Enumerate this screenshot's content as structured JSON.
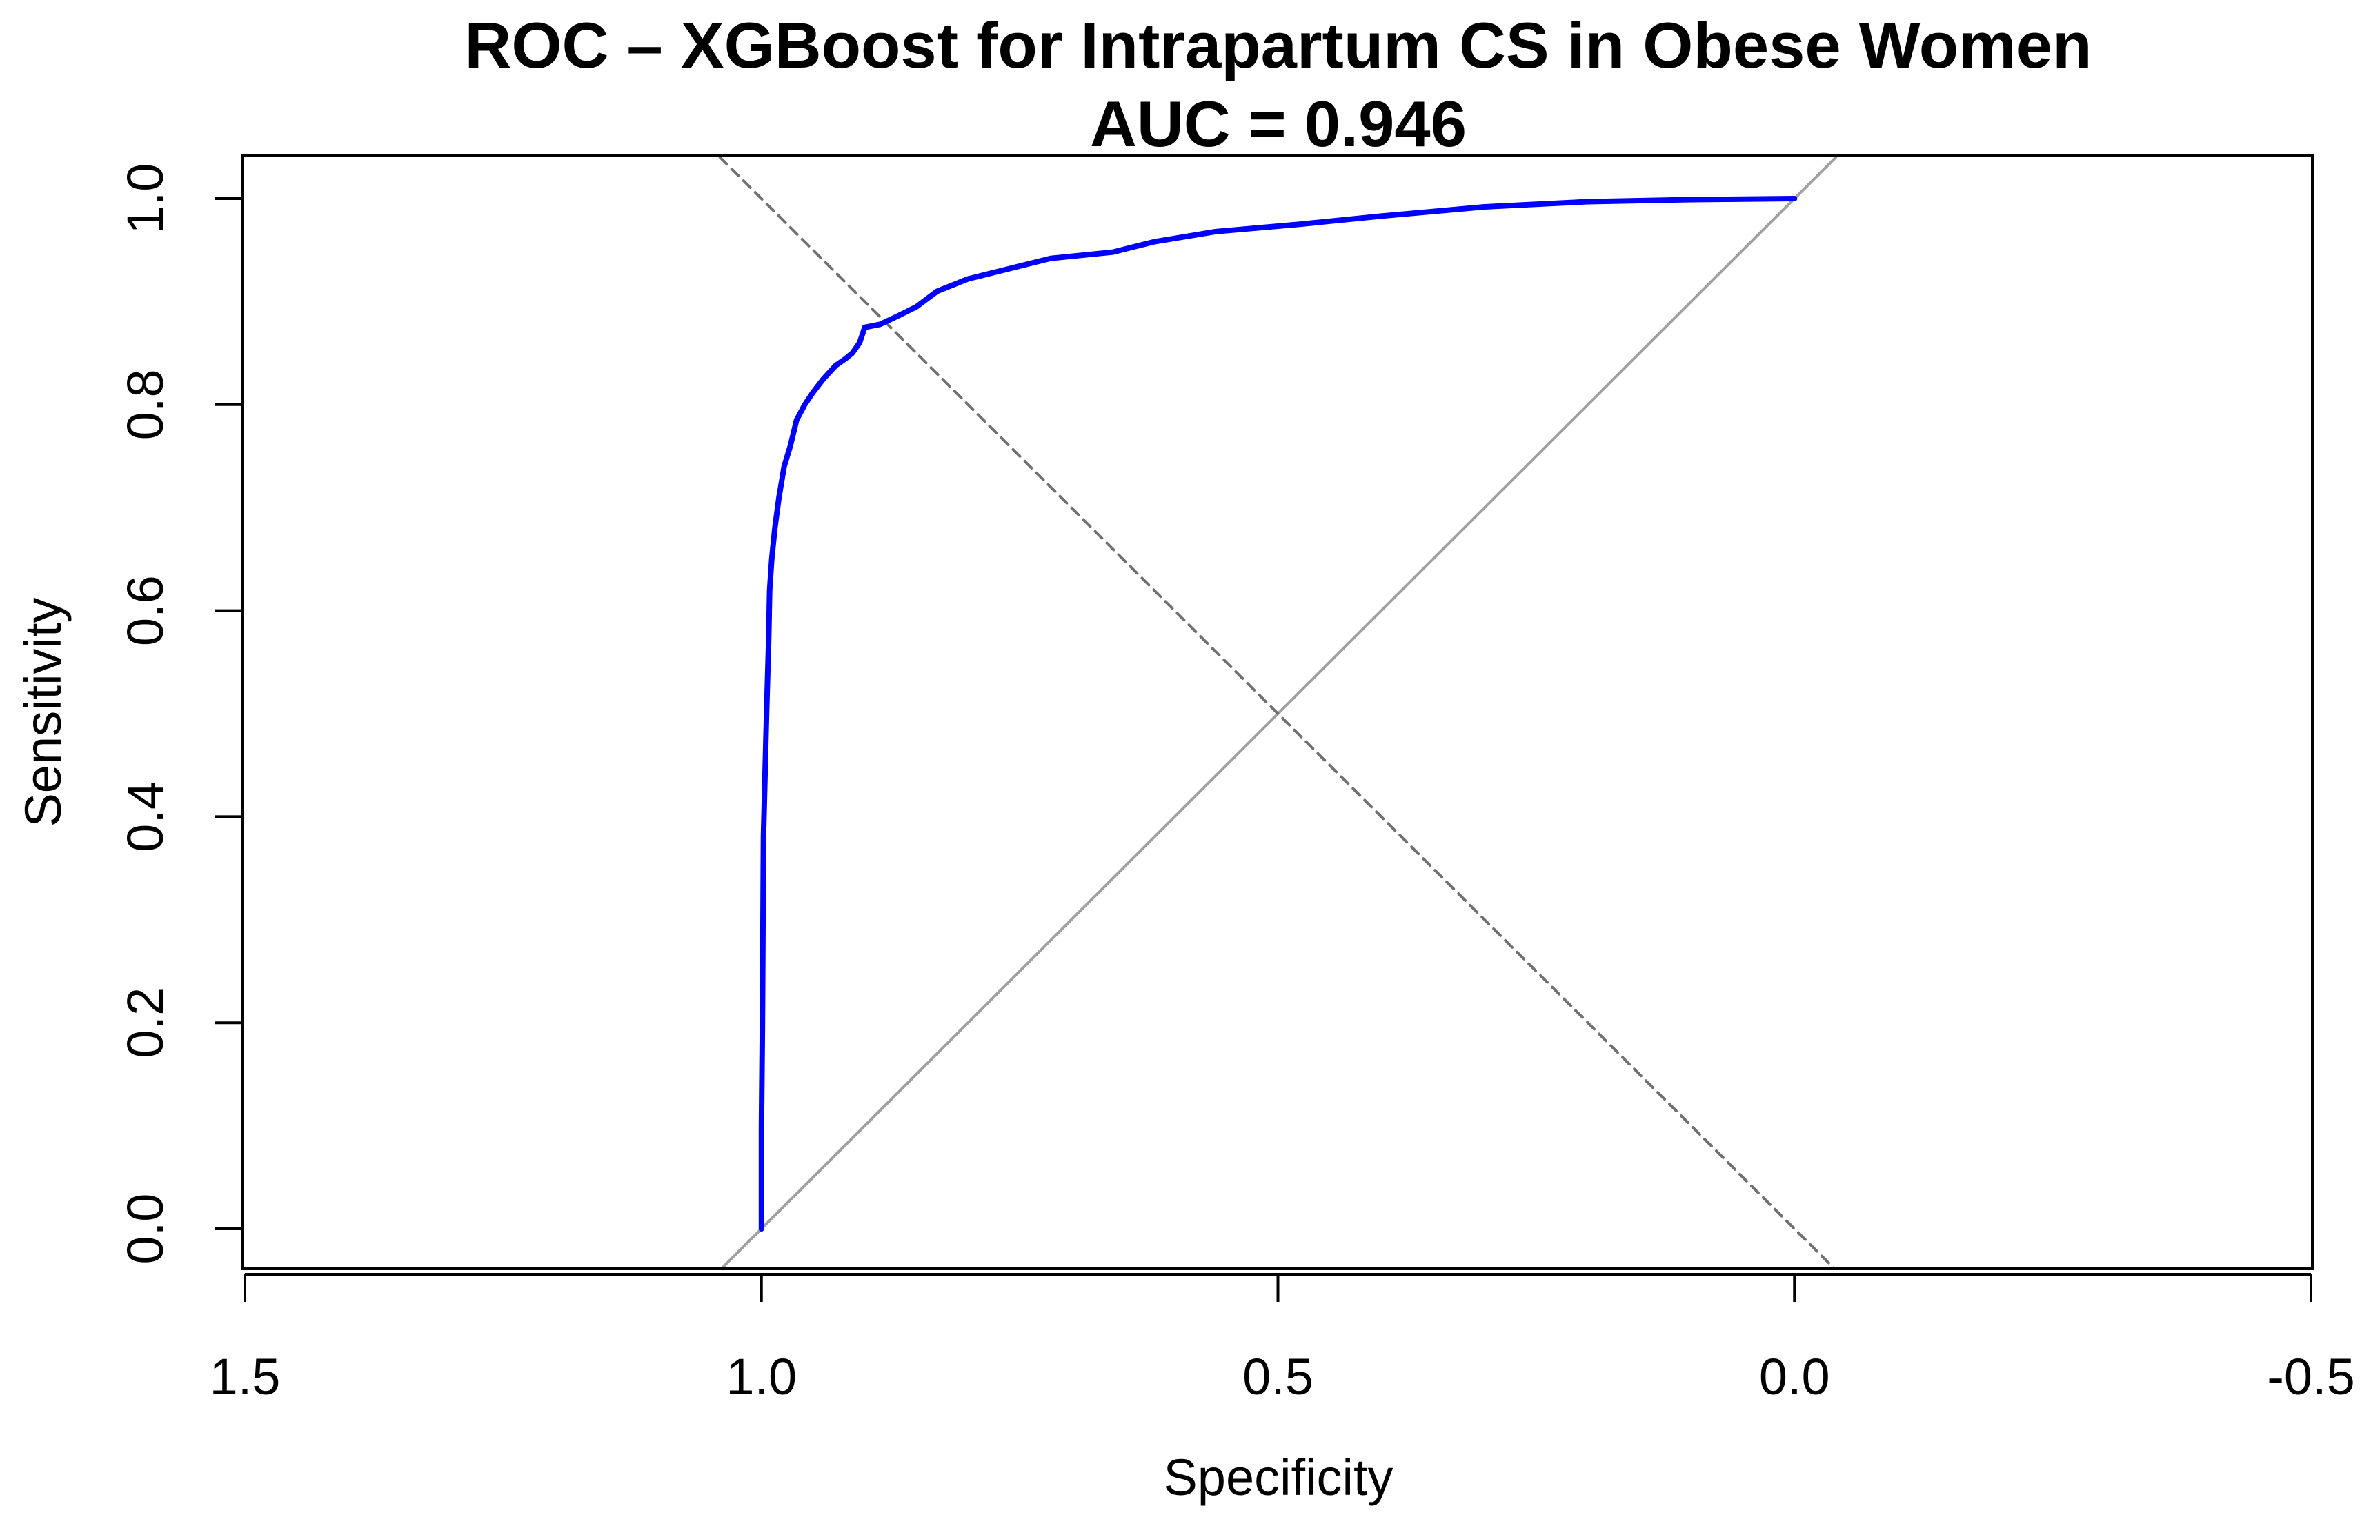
{
  "chart_data": {
    "type": "line",
    "title": "ROC – XGBoost for Intrapartum CS in Obese Women",
    "subtitle": "AUC = 0.946",
    "xlabel": "Specificity",
    "ylabel": "Sensitivity",
    "xlim": [
      1.5,
      -0.5
    ],
    "ylim": [
      0.0,
      1.0
    ],
    "x_ticks": [
      1.5,
      1.0,
      0.5,
      0.0,
      -0.5
    ],
    "x_tick_labels": [
      "1.5",
      "1.0",
      "0.5",
      "0.0",
      "-0.5"
    ],
    "y_ticks": [
      0.0,
      0.2,
      0.4,
      0.6,
      0.8,
      1.0
    ],
    "y_tick_labels": [
      "0.0",
      "0.2",
      "0.4",
      "0.6",
      "0.8",
      "1.0"
    ],
    "grid": false,
    "series": [
      {
        "name": "ROC curve",
        "color": "#0000ff",
        "style": "solid",
        "points": [
          [
            1.0,
            0.0
          ],
          [
            1.0,
            0.1
          ],
          [
            0.999,
            0.2
          ],
          [
            0.998,
            0.38
          ],
          [
            0.997,
            0.42
          ],
          [
            0.995,
            0.5
          ],
          [
            0.993,
            0.57
          ],
          [
            0.992,
            0.62
          ],
          [
            0.99,
            0.65
          ],
          [
            0.987,
            0.68
          ],
          [
            0.983,
            0.71
          ],
          [
            0.978,
            0.74
          ],
          [
            0.972,
            0.76
          ],
          [
            0.966,
            0.785
          ],
          [
            0.958,
            0.8
          ],
          [
            0.95,
            0.812
          ],
          [
            0.94,
            0.825
          ],
          [
            0.928,
            0.838
          ],
          [
            0.918,
            0.845
          ],
          [
            0.912,
            0.85
          ],
          [
            0.905,
            0.86
          ],
          [
            0.9,
            0.875
          ],
          [
            0.885,
            0.878
          ],
          [
            0.87,
            0.885
          ],
          [
            0.85,
            0.895
          ],
          [
            0.83,
            0.91
          ],
          [
            0.8,
            0.922
          ],
          [
            0.76,
            0.932
          ],
          [
            0.72,
            0.942
          ],
          [
            0.66,
            0.948
          ],
          [
            0.62,
            0.958
          ],
          [
            0.56,
            0.968
          ],
          [
            0.48,
            0.975
          ],
          [
            0.4,
            0.983
          ],
          [
            0.3,
            0.992
          ],
          [
            0.2,
            0.997
          ],
          [
            0.1,
            0.999
          ],
          [
            0.0,
            1.0
          ]
        ]
      },
      {
        "name": "chance diagonal",
        "color": "#a0a0a0",
        "style": "solid",
        "points": [
          [
            1.04,
            -0.04
          ],
          [
            -0.04,
            1.04
          ]
        ]
      },
      {
        "name": "dashed reference",
        "color": "#707070",
        "style": "dashed",
        "points": [
          [
            1.04,
            1.04
          ],
          [
            -0.04,
            -0.04
          ]
        ]
      }
    ]
  }
}
